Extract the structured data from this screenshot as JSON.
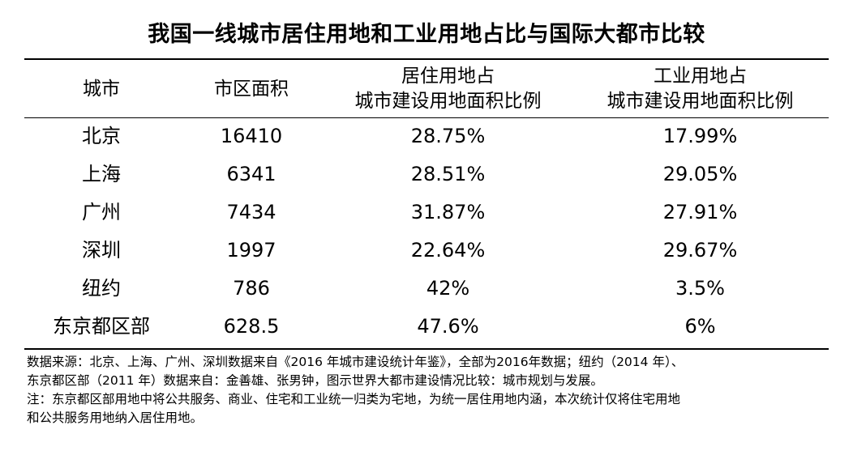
{
  "title": "我国一线城市居住用地和工业用地占比与国际大都市比较",
  "headers": {
    "city": "城市",
    "area": "市区面积",
    "residential_line1": "居住用地占",
    "residential_line2": "城市建设用地面积比例",
    "industrial_line1": "工业用地占",
    "industrial_line2": "城市建设用地面积比例"
  },
  "rows": [
    {
      "city": "北京",
      "area": "16410",
      "residential": "28.75%",
      "industrial": "17.99%"
    },
    {
      "city": "上海",
      "area": "6341",
      "residential": "28.51%",
      "industrial": "29.05%"
    },
    {
      "city": "广州",
      "area": "7434",
      "residential": "31.87%",
      "industrial": "27.91%"
    },
    {
      "city": "深圳",
      "area": "1997",
      "residential": "22.64%",
      "industrial": "29.67%"
    },
    {
      "city": "纽约",
      "area": "786",
      "residential": "42%",
      "industrial": "3.5%"
    },
    {
      "city": "东京都区部",
      "area": "628.5",
      "residential": "47.6%",
      "industrial": "6%"
    }
  ],
  "notes": [
    "数据来源：北京、上海、广州、深圳数据来自《2016 年城市建设统计年鉴》，全部为2016年数据；纽约（2014 年）、",
    "东京都区部（2011 年）数据来自：金善雄、张男钟，图示世界大都市建设情况比较：城市规划与发展。",
    "注：东京都区部用地中将公共服务、商业、住宅和工业统一归类为宅地，为统一居住用地内涵，本次统计仅将住宅用地",
    "和公共服务用地纳入居住用地。"
  ]
}
